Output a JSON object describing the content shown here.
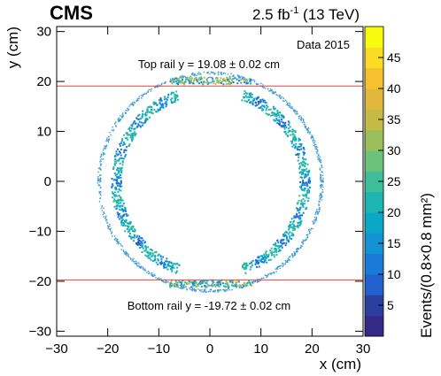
{
  "header": {
    "experiment": "CMS",
    "lumi_prefix": "2.5 fb",
    "lumi_exponent": "-1",
    "lumi_suffix": " (13 TeV)"
  },
  "colors": {
    "rail_line": "#e0453a",
    "ring": "#3d9ad2",
    "frame": "#000000",
    "palette": [
      "#352a87",
      "#2b3fa0",
      "#2160cd",
      "#1b79d9",
      "#1393d3",
      "#0aa7c7",
      "#1db4b1",
      "#3dbd99",
      "#6bc27a",
      "#9bc05b",
      "#c4bb46",
      "#e2b83c",
      "#f7c030",
      "#fadb25",
      "#f9fb0e"
    ]
  },
  "chart_data": {
    "type": "heatmap",
    "xlabel": "x (cm)",
    "ylabel": "y (cm)",
    "xlim": [
      -30,
      30
    ],
    "ylim": [
      -31,
      31
    ],
    "x_ticks": [
      -30,
      -20,
      -10,
      0,
      10,
      20,
      30
    ],
    "y_ticks": [
      -30,
      -20,
      -10,
      0,
      10,
      20,
      30
    ],
    "x_tick_labels": [
      "−30",
      "−20",
      "−10",
      "0",
      "10",
      "20",
      "30"
    ],
    "y_tick_labels": [
      "−30",
      "−20",
      "−10",
      "0",
      "10",
      "20",
      "30"
    ],
    "zlabel": "Events/(0.8×0.8 mm²)",
    "zlim": [
      0,
      50
    ],
    "z_ticks": [
      5,
      10,
      15,
      20,
      25,
      30,
      35,
      40,
      45
    ],
    "z_tick_labels": [
      "5",
      "10",
      "15",
      "20",
      "25",
      "30",
      "35",
      "40",
      "45"
    ],
    "data_label": "Data 2015",
    "rails": [
      {
        "name": "Top rail",
        "y": 19.08,
        "label": "Top rail y = 19.08 ± 0.02 cm"
      },
      {
        "name": "Bottom rail",
        "y": -19.72,
        "label": "Bottom rail y = -19.72 ± 0.02 cm"
      }
    ],
    "structures": {
      "outer_ring_radius": 21.8,
      "inner_ring_radius": 18.5,
      "beam_pipe_marks": [
        [
          0,
          20.3
        ],
        [
          0,
          -20.3
        ]
      ]
    }
  }
}
